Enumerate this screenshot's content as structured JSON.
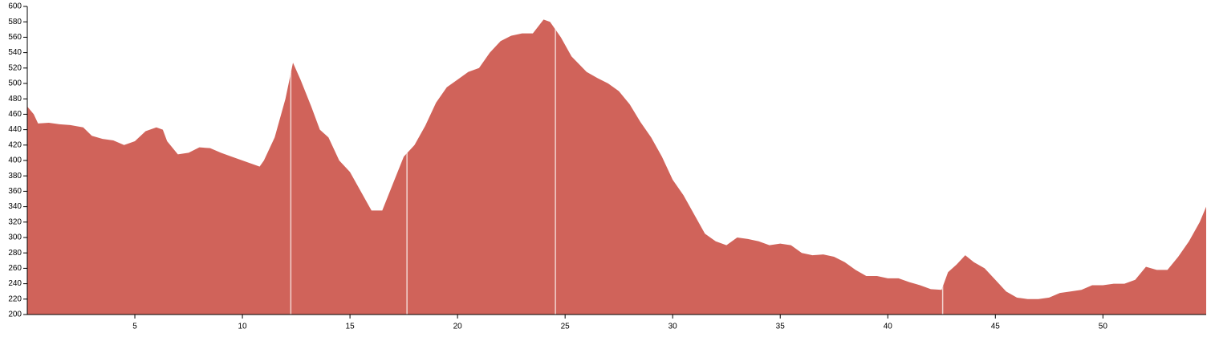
{
  "chart_data": {
    "type": "area",
    "x": [
      0,
      0.3,
      0.5,
      1,
      1.5,
      2,
      2.6,
      3,
      3.5,
      4,
      4.5,
      5,
      5.5,
      6,
      6.3,
      6.5,
      7,
      7.5,
      8,
      8.5,
      9,
      9.5,
      10,
      10.5,
      10.8,
      11,
      11.5,
      12,
      12.35,
      12.7,
      13.2,
      13.6,
      14,
      14.5,
      15,
      15.5,
      16,
      16.5,
      17,
      17.5,
      18,
      18.5,
      19,
      19.5,
      20,
      20.5,
      21,
      21.5,
      22,
      22.5,
      23,
      23.5,
      24,
      24.3,
      24.8,
      25.3,
      26,
      26.5,
      27,
      27.5,
      28,
      28.5,
      29,
      29.5,
      30,
      30.5,
      31,
      31.5,
      32,
      32.5,
      33,
      33.5,
      34,
      34.5,
      35,
      35.5,
      36,
      36.5,
      37,
      37.5,
      38,
      38.5,
      39,
      39.5,
      40,
      40.5,
      41,
      41.5,
      42,
      42.5,
      42.8,
      43.2,
      43.6,
      44,
      44.5,
      45,
      45.5,
      46,
      46.5,
      47,
      47.5,
      48,
      48.5,
      49,
      49.5,
      50,
      50.5,
      51,
      51.5,
      52,
      52.5,
      53,
      53.5,
      54,
      54.5,
      54.8
    ],
    "values": [
      470,
      460,
      448,
      449,
      447,
      446,
      443,
      432,
      428,
      426,
      420,
      425,
      438,
      443,
      440,
      425,
      408,
      410,
      417,
      416,
      410,
      405,
      400,
      395,
      392,
      400,
      430,
      480,
      527,
      505,
      470,
      440,
      430,
      400,
      385,
      360,
      335,
      335,
      370,
      405,
      420,
      445,
      475,
      495,
      505,
      515,
      520,
      540,
      555,
      562,
      565,
      565,
      583,
      580,
      560,
      535,
      515,
      507,
      500,
      490,
      473,
      450,
      430,
      405,
      375,
      355,
      330,
      305,
      295,
      290,
      300,
      298,
      295,
      290,
      292,
      290,
      280,
      277,
      278,
      275,
      268,
      258,
      250,
      250,
      247,
      247,
      242,
      238,
      233,
      232,
      255,
      265,
      277,
      268,
      260,
      245,
      230,
      222,
      220,
      220,
      222,
      228,
      230,
      232,
      238,
      238,
      240,
      240,
      245,
      262,
      258,
      258,
      275,
      295,
      320,
      340
    ],
    "color": "#d0635a",
    "markers": [
      12.25,
      17.65,
      24.55,
      42.55
    ],
    "xlim": [
      0,
      54.8
    ],
    "xticks": [
      5,
      10,
      15,
      20,
      25,
      30,
      35,
      40,
      45,
      50
    ],
    "ylim": [
      200,
      600
    ],
    "yticks": [
      200,
      220,
      240,
      260,
      280,
      300,
      320,
      340,
      360,
      380,
      400,
      420,
      440,
      460,
      480,
      500,
      520,
      540,
      560,
      580,
      600
    ]
  }
}
